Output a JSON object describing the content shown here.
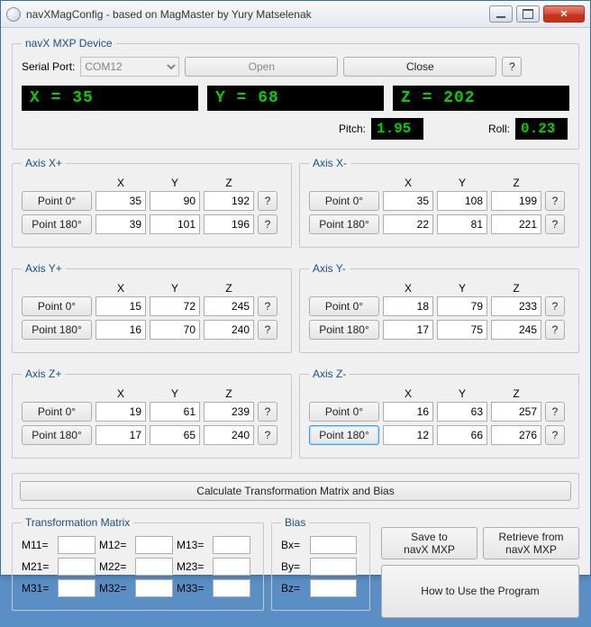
{
  "window": {
    "title": "navXMagConfig - based on MagMaster by Yury Matselenak"
  },
  "device": {
    "legend": "navX MXP Device",
    "serial_label": "Serial Port:",
    "serial_value": "COM12",
    "open_label": "Open",
    "close_label": "Close",
    "help_label": "?",
    "x_display": "X = 35",
    "y_display": "Y = 68",
    "z_display": "Z = 202",
    "pitch_label": "Pitch:",
    "pitch_value": "1.95",
    "roll_label": "Roll:",
    "roll_value": "0.23"
  },
  "col_x": "X",
  "col_y": "Y",
  "col_z": "Z",
  "p0_label": "Point 0°",
  "p180_label": "Point 180°",
  "q_label": "?",
  "axes": {
    "xp": {
      "legend": "Axis X+",
      "p0": {
        "x": "35",
        "y": "90",
        "z": "192"
      },
      "p180": {
        "x": "39",
        "y": "101",
        "z": "196"
      }
    },
    "xm": {
      "legend": "Axis X-",
      "p0": {
        "x": "35",
        "y": "108",
        "z": "199"
      },
      "p180": {
        "x": "22",
        "y": "81",
        "z": "221"
      }
    },
    "yp": {
      "legend": "Axis Y+",
      "p0": {
        "x": "15",
        "y": "72",
        "z": "245"
      },
      "p180": {
        "x": "16",
        "y": "70",
        "z": "240"
      }
    },
    "ym": {
      "legend": "Axis Y-",
      "p0": {
        "x": "18",
        "y": "79",
        "z": "233"
      },
      "p180": {
        "x": "17",
        "y": "75",
        "z": "245"
      }
    },
    "zp": {
      "legend": "Axis Z+",
      "p0": {
        "x": "19",
        "y": "61",
        "z": "239"
      },
      "p180": {
        "x": "17",
        "y": "65",
        "z": "240"
      }
    },
    "zm": {
      "legend": "Axis Z-",
      "p0": {
        "x": "16",
        "y": "63",
        "z": "257"
      },
      "p180": {
        "x": "12",
        "y": "66",
        "z": "276"
      }
    }
  },
  "calc_label": "Calculate Transformation Matrix and Bias",
  "matrix": {
    "legend": "Transformation Matrix",
    "m11_l": "M11=",
    "m12_l": "M12=",
    "m13_l": "M13=",
    "m21_l": "M21=",
    "m22_l": "M22=",
    "m23_l": "M23=",
    "m31_l": "M31=",
    "m32_l": "M32=",
    "m33_l": "M33=",
    "m11": "",
    "m12": "",
    "m13": "",
    "m21": "",
    "m22": "",
    "m23": "",
    "m31": "",
    "m32": "",
    "m33": ""
  },
  "bias": {
    "legend": "Bias",
    "bx_l": "Bx=",
    "by_l": "By=",
    "bz_l": "Bz=",
    "bx": "",
    "by": "",
    "bz": ""
  },
  "buttons": {
    "save": "Save to\nnavX MXP",
    "retrieve": "Retrieve from\nnavX MXP",
    "howto": "How to Use the Program"
  }
}
